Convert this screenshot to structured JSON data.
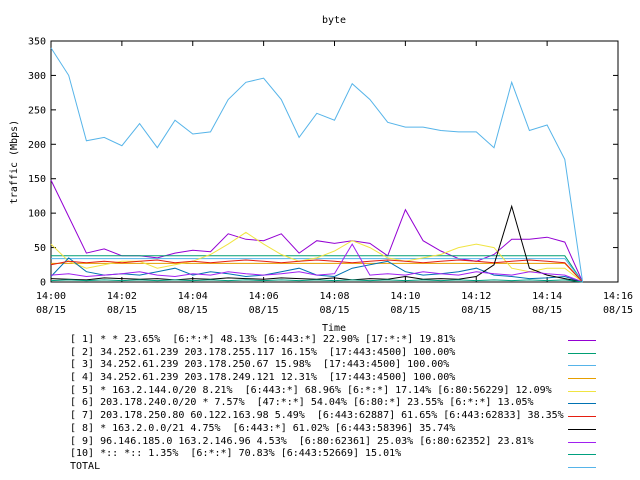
{
  "chart_data": {
    "type": "line",
    "title": "byte",
    "xlabel": "Time",
    "ylabel": "traffic (Mbps)",
    "ylim": [
      0,
      350
    ],
    "yticks": [
      0,
      50,
      100,
      150,
      200,
      250,
      300,
      350
    ],
    "xlim": [
      "14:00",
      "14:16"
    ],
    "xticks": [
      {
        "time": "14:00",
        "date": "08/15"
      },
      {
        "time": "14:02",
        "date": "08/15"
      },
      {
        "time": "14:04",
        "date": "08/15"
      },
      {
        "time": "14:06",
        "date": "08/15"
      },
      {
        "time": "14:08",
        "date": "08/15"
      },
      {
        "time": "14:10",
        "date": "08/15"
      },
      {
        "time": "14:12",
        "date": "08/15"
      },
      {
        "time": "14:14",
        "date": "08/15"
      },
      {
        "time": "14:16",
        "date": "08/15"
      }
    ],
    "grid": false,
    "legend_position": "bottom",
    "x": [
      "14:00",
      "14:00:30",
      "14:01",
      "14:01:30",
      "14:02",
      "14:02:30",
      "14:03",
      "14:03:30",
      "14:04",
      "14:04:30",
      "14:05",
      "14:05:30",
      "14:06",
      "14:06:30",
      "14:07",
      "14:07:30",
      "14:08",
      "14:08:30",
      "14:09",
      "14:09:30",
      "14:10",
      "14:10:30",
      "14:11",
      "14:11:30",
      "14:12",
      "14:12:30",
      "14:13",
      "14:13:30",
      "14:14",
      "14:14:30",
      "14:15"
    ],
    "series": [
      {
        "name": "[ 1] * * 23.65%  [6:*:*] 48.13% [6:443:*] 22.90% [17:*:*] 19.81%",
        "color": "#9400d3",
        "values": [
          148,
          95,
          42,
          48,
          38,
          38,
          35,
          42,
          46,
          44,
          70,
          62,
          60,
          70,
          42,
          60,
          56,
          60,
          56,
          38,
          105,
          60,
          45,
          34,
          30,
          40,
          62,
          62,
          65,
          58,
          0
        ]
      },
      {
        "name": "[ 2] 34.252.61.239 203.178.255.117 16.15%  [17:443:4500] 100.00%",
        "color": "#009e73",
        "values": [
          38,
          38,
          38,
          38,
          38,
          38,
          38,
          38,
          38,
          38,
          38,
          38,
          38,
          38,
          38,
          38,
          38,
          38,
          38,
          38,
          38,
          38,
          38,
          38,
          38,
          38,
          38,
          38,
          38,
          38,
          0
        ]
      },
      {
        "name": "[ 3] 34.252.61.239 203.178.250.67 15.98%  [17:443:4500] 100.00%",
        "color": "#56b4e9",
        "values": [
          34,
          34,
          34,
          34,
          34,
          34,
          34,
          34,
          34,
          34,
          34,
          34,
          34,
          34,
          34,
          34,
          34,
          34,
          34,
          34,
          34,
          34,
          34,
          34,
          34,
          34,
          34,
          34,
          34,
          34,
          0
        ]
      },
      {
        "name": "[ 4] 34.252.61.239 203.178.249.121 12.31%  [17:443:4500] 100.00%",
        "color": "#e69f00",
        "values": [
          27,
          27,
          27,
          27,
          27,
          27,
          27,
          27,
          27,
          27,
          27,
          27,
          27,
          27,
          27,
          27,
          27,
          27,
          27,
          27,
          27,
          27,
          27,
          27,
          27,
          27,
          27,
          27,
          27,
          27,
          0
        ]
      },
      {
        "name": "[ 5] * 163.2.144.0/20 8.21%  [6:443:*] 68.96% [6:*:*] 17.14% [6:80:56229] 12.09%",
        "color": "#f0e442",
        "values": [
          55,
          30,
          20,
          25,
          30,
          30,
          20,
          25,
          30,
          40,
          55,
          72,
          55,
          40,
          30,
          35,
          45,
          60,
          50,
          35,
          30,
          35,
          40,
          50,
          55,
          50,
          20,
          15,
          20,
          20,
          0
        ]
      },
      {
        "name": "[ 6] 203.178.240.0/20 * 7.57%  [47:*:*] 54.04% [6:80:*] 23.55% [6:*:*] 13.05%",
        "color": "#0072b2",
        "values": [
          8,
          35,
          15,
          10,
          12,
          10,
          15,
          20,
          10,
          15,
          12,
          8,
          10,
          15,
          20,
          10,
          8,
          20,
          25,
          30,
          15,
          10,
          12,
          15,
          20,
          10,
          8,
          5,
          6,
          8,
          0
        ]
      },
      {
        "name": "[ 7] 203.178.250.80 60.122.163.98 5.49%  [6:443:62887] 61.65% [6:443:62833] 38.35%",
        "color": "#e51e10",
        "values": [
          25,
          30,
          28,
          30,
          28,
          30,
          32,
          28,
          30,
          28,
          30,
          32,
          30,
          28,
          30,
          32,
          30,
          28,
          30,
          32,
          30,
          28,
          30,
          32,
          30,
          28,
          30,
          32,
          30,
          28,
          0
        ]
      },
      {
        "name": "[ 8] * 163.2.0.0/21 4.75%  [6:443:*] 61.02% [6:443:58396] 35.74%",
        "color": "#000000",
        "values": [
          5,
          4,
          3,
          6,
          5,
          4,
          5,
          3,
          5,
          4,
          6,
          5,
          4,
          6,
          5,
          4,
          6,
          3,
          5,
          4,
          8,
          4,
          5,
          4,
          8,
          25,
          110,
          20,
          10,
          5,
          0
        ]
      },
      {
        "name": "[ 9] 96.146.185.0 163.2.146.96 4.53%  [6:80:62361] 25.03% [6:80:62352] 23.81%",
        "color": "#a020f0",
        "values": [
          10,
          12,
          8,
          10,
          12,
          15,
          10,
          8,
          12,
          10,
          15,
          12,
          10,
          12,
          15,
          10,
          12,
          55,
          10,
          12,
          10,
          15,
          12,
          10,
          15,
          12,
          10,
          15,
          12,
          10,
          0
        ]
      },
      {
        "name": "[10] *:: *:: 1.35%  [6:*:*] 70.83% [6:443:52669] 15.01%",
        "color": "#00a07f",
        "values": [
          2,
          3,
          2,
          3,
          2,
          3,
          2,
          3,
          2,
          3,
          2,
          3,
          2,
          3,
          2,
          3,
          2,
          3,
          2,
          3,
          2,
          3,
          2,
          3,
          2,
          3,
          2,
          3,
          2,
          3,
          0
        ]
      },
      {
        "name": "TOTAL",
        "color": "#56b4e9",
        "values": [
          340,
          300,
          205,
          210,
          198,
          230,
          195,
          235,
          215,
          218,
          265,
          290,
          296,
          265,
          210,
          245,
          235,
          288,
          265,
          232,
          225,
          225,
          220,
          218,
          218,
          195,
          290,
          220,
          228,
          178,
          0
        ]
      }
    ]
  }
}
